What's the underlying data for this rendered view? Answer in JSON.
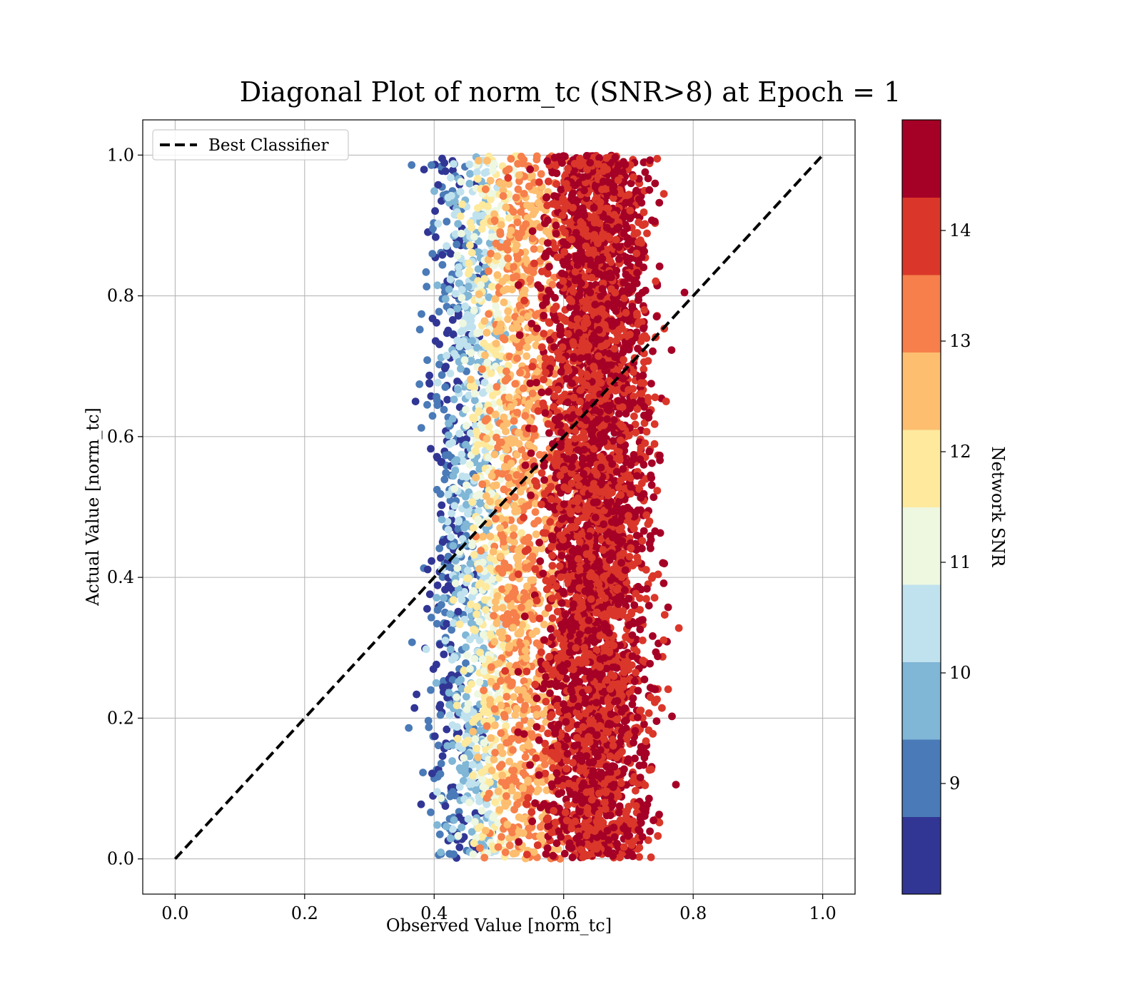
{
  "chart_data": {
    "type": "scatter",
    "title": "Diagonal Plot of norm_tc (SNR>8) at Epoch = 1",
    "xlabel": "Observed Value [norm_tc]",
    "ylabel": "Actual Value [norm_tc]",
    "xlim": [
      -0.05,
      1.05
    ],
    "ylim": [
      -0.05,
      1.05
    ],
    "x_ticks": [
      "0.0",
      "0.2",
      "0.4",
      "0.6",
      "0.8",
      "1.0"
    ],
    "y_ticks": [
      "0.0",
      "0.2",
      "0.4",
      "0.6",
      "0.8",
      "1.0"
    ],
    "grid": true,
    "legend": {
      "placement": "top-left",
      "entries": [
        {
          "label": "Best Classifier",
          "style": "black dashed line"
        }
      ]
    },
    "reference_line": {
      "name": "Best Classifier",
      "x": [
        0.0,
        1.0
      ],
      "y": [
        0.0,
        1.0
      ],
      "color": "#000000",
      "style": "dashed"
    },
    "colorbar": {
      "label": "Network SNR",
      "ticks": [
        "9",
        "10",
        "11",
        "12",
        "13",
        "14"
      ],
      "tick_values": [
        9,
        10,
        11,
        12,
        13,
        14
      ],
      "range": [
        8.0,
        15.0
      ],
      "colormap": "RdYlBu_r",
      "bins": [
        {
          "from": 8.0,
          "to": 8.7,
          "color": "#313695"
        },
        {
          "from": 8.7,
          "to": 9.4,
          "color": "#4a7ab7"
        },
        {
          "from": 9.4,
          "to": 10.1,
          "color": "#80b6d6"
        },
        {
          "from": 10.1,
          "to": 10.8,
          "color": "#c0e2ee"
        },
        {
          "from": 10.8,
          "to": 11.5,
          "color": "#eef7e0"
        },
        {
          "from": 11.5,
          "to": 12.2,
          "color": "#fee99d"
        },
        {
          "from": 12.2,
          "to": 12.9,
          "color": "#fdbe6f"
        },
        {
          "from": 12.9,
          "to": 13.6,
          "color": "#f67f4b"
        },
        {
          "from": 13.6,
          "to": 14.3,
          "color": "#da372a"
        },
        {
          "from": 14.3,
          "to": 15.0,
          "color": "#a50026"
        }
      ]
    },
    "scatter_distribution": {
      "description_x_by_snr": [
        {
          "snr_min": 8.0,
          "snr_max": 9.4,
          "x_center": 0.43,
          "x_spread": 0.045
        },
        {
          "snr_min": 9.4,
          "snr_max": 10.8,
          "x_center": 0.46,
          "x_spread": 0.04
        },
        {
          "snr_min": 10.8,
          "snr_max": 12.2,
          "x_center": 0.49,
          "x_spread": 0.04
        },
        {
          "snr_min": 12.2,
          "snr_max": 13.6,
          "x_center": 0.54,
          "x_spread": 0.05
        },
        {
          "snr_min": 13.6,
          "snr_max": 15.0,
          "x_center": 0.65,
          "x_spread": 0.07
        }
      ],
      "y_range": [
        0.0,
        1.0
      ]
    }
  }
}
